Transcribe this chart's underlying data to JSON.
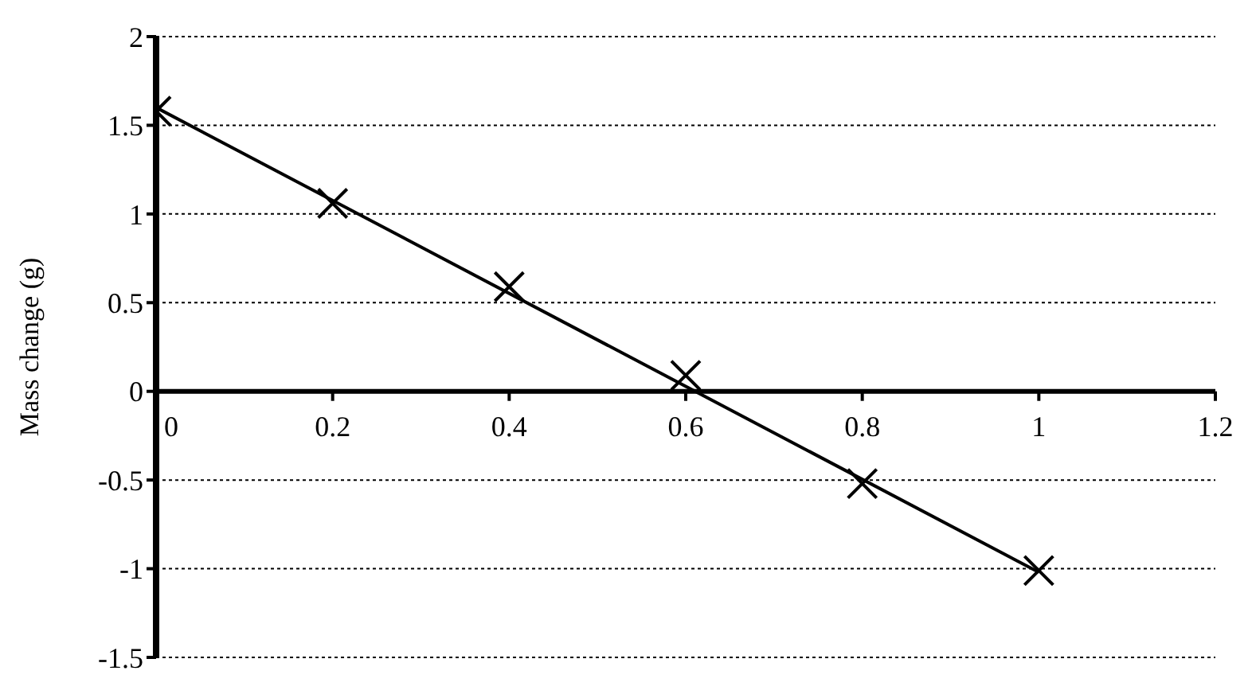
{
  "chart_data": {
    "type": "scatter",
    "ylabel": "Mass change (g)",
    "xlim": [
      0,
      1.2
    ],
    "xticks": [
      0,
      0.2,
      0.4,
      0.6,
      0.8,
      1,
      1.2
    ],
    "ylim": [
      -1.5,
      2
    ],
    "yticks": [
      -1.5,
      -1,
      -0.5,
      0,
      0.5,
      1,
      1.5,
      2
    ],
    "grid": "y",
    "line_style": "solid",
    "series": [
      {
        "color": "#000000",
        "marker": "cross",
        "x": [
          0,
          0.2,
          0.4,
          0.6,
          0.8,
          1
        ],
        "values": [
          1.58,
          1.06,
          0.59,
          0.09,
          -0.52,
          -1.01
        ]
      },
      {
        "type": "line",
        "color": "#000000",
        "marker": "none",
        "x": [
          0,
          1
        ],
        "values": [
          1.6,
          -1.02
        ]
      }
    ]
  }
}
